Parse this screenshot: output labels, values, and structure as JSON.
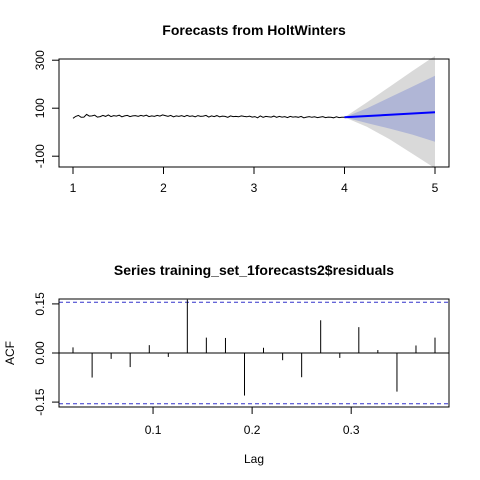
{
  "chart_data": [
    {
      "type": "line",
      "title": "Forecasts from HoltWinters",
      "xlabel": "",
      "ylabel": "",
      "xlim": [
        1,
        5
      ],
      "ylim": [
        -170,
        330
      ],
      "x_ticks": [
        "1",
        "2",
        "3",
        "4",
        "5"
      ],
      "y_ticks": [
        "-100",
        "100",
        "300"
      ],
      "series": [
        {
          "role": "observed",
          "color": "#000000",
          "x": [
            1.0,
            1.03,
            1.06,
            1.09,
            1.12,
            1.15,
            1.18,
            1.21,
            1.24,
            1.27,
            1.3,
            1.33,
            1.36,
            1.39,
            1.42,
            1.45,
            1.48,
            1.51,
            1.54,
            1.57,
            1.6,
            1.63,
            1.66,
            1.69,
            1.72,
            1.75,
            1.78,
            1.81,
            1.84,
            1.87,
            1.9,
            1.93,
            1.96,
            1.99,
            2.02,
            2.05,
            2.08,
            2.11,
            2.14,
            2.17,
            2.2,
            2.23,
            2.26,
            2.29,
            2.32,
            2.35,
            2.38,
            2.41,
            2.44,
            2.47,
            2.5,
            2.53,
            2.56,
            2.59,
            2.62,
            2.65,
            2.68,
            2.71,
            2.74,
            2.77,
            2.8,
            2.83,
            2.86,
            2.89,
            2.92,
            2.95,
            2.98,
            3.01,
            3.04,
            3.07,
            3.1,
            3.13,
            3.16,
            3.19,
            3.22,
            3.25,
            3.28,
            3.31,
            3.34,
            3.37,
            3.4,
            3.43,
            3.46,
            3.49,
            3.52,
            3.55,
            3.58,
            3.61,
            3.64,
            3.67,
            3.7,
            3.73,
            3.76,
            3.79,
            3.82,
            3.85,
            3.88,
            3.91,
            3.94,
            3.97,
            4.0
          ],
          "y": [
            58,
            66,
            70,
            62,
            63,
            74,
            67,
            68,
            71,
            63,
            65,
            70,
            66,
            72,
            65,
            69,
            67,
            71,
            64,
            68,
            70,
            65,
            68,
            69,
            66,
            70,
            67,
            71,
            65,
            68,
            66,
            70,
            67,
            72,
            69,
            66,
            70,
            64,
            68,
            66,
            69,
            65,
            70,
            66,
            68,
            64,
            69,
            66,
            67,
            70,
            63,
            68,
            65,
            69,
            64,
            67,
            66,
            62,
            68,
            65,
            66,
            64,
            68,
            66,
            64,
            67,
            63,
            65,
            60,
            68,
            62,
            66,
            64,
            63,
            67,
            62,
            66,
            63,
            65,
            61,
            66,
            63,
            64,
            62,
            66,
            60,
            63,
            65,
            62,
            64,
            61,
            63,
            65,
            61,
            63,
            62,
            60,
            64,
            61,
            62,
            62
          ]
        },
        {
          "role": "forecast",
          "color": "#0000ff",
          "x": [
            4.0,
            5.0
          ],
          "y": [
            62,
            83
          ]
        }
      ],
      "intervals": [
        {
          "level": "80%",
          "color": "#b0b6d6",
          "x": [
            4.0,
            4.25,
            4.5,
            4.75,
            5.0
          ],
          "lower": [
            62,
            38,
            15,
            -10,
            -40
          ],
          "upper": [
            62,
            100,
            145,
            190,
            235
          ]
        },
        {
          "level": "95%",
          "color": "#d9d9d9",
          "x": [
            4.0,
            4.25,
            4.5,
            4.75,
            5.0
          ],
          "lower": [
            62,
            22,
            -30,
            -90,
            -150
          ],
          "upper": [
            62,
            125,
            190,
            255,
            318
          ]
        }
      ]
    },
    {
      "type": "bar",
      "title": "Series  training_set_1forecasts2$residuals",
      "xlabel": "Lag",
      "ylabel": "ACF",
      "xlim": [
        0.0192,
        0.3846
      ],
      "ylim": [
        -0.165,
        0.165
      ],
      "x_ticks": [
        "0.1",
        "0.2",
        "0.3"
      ],
      "y_ticks": [
        "-0.15",
        "0.00",
        "0.15"
      ],
      "confidence_bounds": [
        -0.155,
        0.155
      ],
      "bounds_color": "#3333cc",
      "lags": [
        0.0192,
        0.0385,
        0.0577,
        0.0769,
        0.0962,
        0.1154,
        0.1346,
        0.1538,
        0.1731,
        0.1923,
        0.2115,
        0.2308,
        0.25,
        0.2692,
        0.2885,
        0.3077,
        0.3269,
        0.3462,
        0.3654,
        0.3846
      ],
      "values": [
        0.017,
        -0.075,
        -0.018,
        -0.043,
        0.024,
        -0.012,
        0.163,
        0.047,
        0.046,
        -0.13,
        0.016,
        -0.022,
        -0.074,
        0.1,
        -0.015,
        0.079,
        0.009,
        -0.118,
        0.023,
        0.047
      ]
    }
  ]
}
